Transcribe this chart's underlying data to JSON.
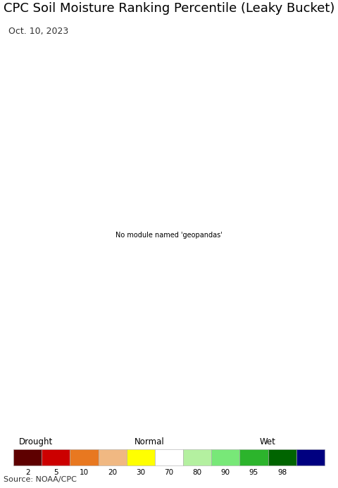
{
  "title": "CPC Soil Moisture Ranking Percentile (Leaky Bucket)",
  "subtitle": "Oct. 10, 2023",
  "source": "Source: NOAA/CPC",
  "title_fontsize": 13,
  "subtitle_fontsize": 9,
  "source_fontsize": 8,
  "bg_color": "#add8e6",
  "land_bg_color": "#d8d8d8",
  "fig_width": 4.8,
  "fig_height": 6.93,
  "legend_colors": [
    "#5e0000",
    "#cc0000",
    "#e87820",
    "#f0b882",
    "#ffff00",
    "#ffffff",
    "#b4f0a0",
    "#78e878",
    "#2cb42c",
    "#006400",
    "#000080"
  ],
  "legend_labels": [
    "2",
    "5",
    "10",
    "20",
    "30",
    "70",
    "80",
    "90",
    "95",
    "98"
  ],
  "legend_category_labels": [
    "Drought",
    "Normal",
    "Wet"
  ],
  "bounds": [
    0,
    2,
    5,
    10,
    20,
    30,
    70,
    80,
    90,
    95,
    98,
    100
  ],
  "lon_min": -82,
  "lon_max": -33,
  "lat_min": -56,
  "lat_max": -14
}
